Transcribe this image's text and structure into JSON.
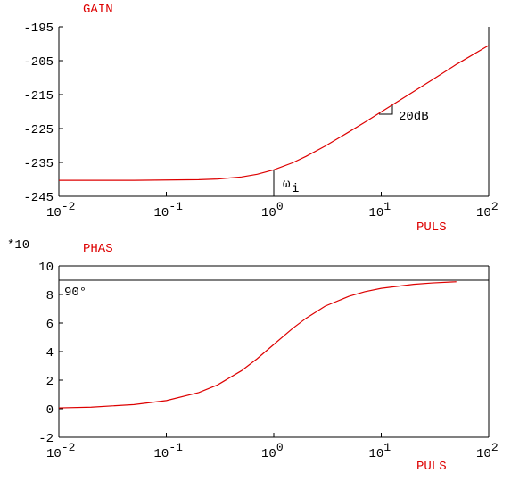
{
  "chart_data": [
    {
      "type": "line",
      "title": "GAIN",
      "xlabel": "PULS",
      "xscale": "log",
      "xlim": [
        0.01,
        100
      ],
      "ylim": [
        -245,
        -195
      ],
      "xticks": [
        {
          "value": 0.01,
          "label": "10-2"
        },
        {
          "value": 0.1,
          "label": "10-1"
        },
        {
          "value": 1,
          "label": "100"
        },
        {
          "value": 10,
          "label": "101"
        },
        {
          "value": 100,
          "label": "102"
        }
      ],
      "yticks": [
        -245,
        -235,
        -225,
        -215,
        -205,
        -195
      ],
      "x": [
        0.01,
        0.02,
        0.05,
        0.1,
        0.2,
        0.3,
        0.5,
        0.7,
        1,
        1.5,
        2,
        3,
        5,
        7,
        10,
        20,
        30,
        50,
        100
      ],
      "values": [
        -240.3,
        -240.3,
        -240.3,
        -240.2,
        -240.1,
        -239.9,
        -239.3,
        -238.5,
        -237.2,
        -235.1,
        -233.2,
        -230.2,
        -226.0,
        -223.2,
        -220.1,
        -214.1,
        -210.6,
        -206.1,
        -200.5
      ],
      "color": "#dd0000",
      "marker": {
        "x": 1,
        "label": "ω",
        "subscript": "i"
      },
      "slope_label": "20dB"
    },
    {
      "type": "line",
      "title": "PHAS",
      "xlabel": "PULS",
      "xscale": "log",
      "y_multiplier": "*10",
      "xlim": [
        0.01,
        100
      ],
      "ylim": [
        -2,
        10
      ],
      "xticks": [
        {
          "value": 0.01,
          "label": "10-2"
        },
        {
          "value": 0.1,
          "label": "10-1"
        },
        {
          "value": 1,
          "label": "100"
        },
        {
          "value": 10,
          "label": "101"
        },
        {
          "value": 100,
          "label": "102"
        }
      ],
      "yticks": [
        -2,
        0,
        2,
        4,
        6,
        8,
        10
      ],
      "x": [
        0.01,
        0.02,
        0.05,
        0.1,
        0.2,
        0.3,
        0.5,
        0.7,
        1,
        1.5,
        2,
        3,
        5,
        7,
        10,
        20,
        30,
        50
      ],
      "values": [
        0.06,
        0.11,
        0.29,
        0.57,
        1.13,
        1.67,
        2.66,
        3.5,
        4.5,
        5.63,
        6.34,
        7.18,
        7.87,
        8.19,
        8.43,
        8.71,
        8.81,
        8.89
      ],
      "color": "#dd0000",
      "reference_line": {
        "value": 9,
        "label": "90°"
      }
    }
  ]
}
